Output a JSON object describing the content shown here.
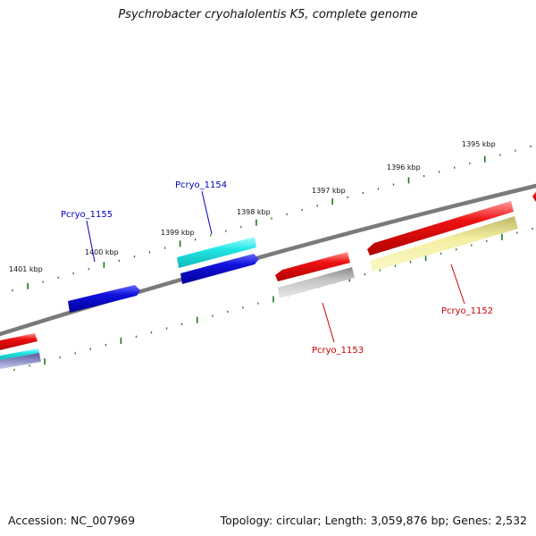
{
  "title": "Psychrobacter cryohalolentis K5, complete genome",
  "footer": {
    "accession": "Accession: NC_007969",
    "summary": "Topology: circular; Length: 3,059,876 bp; Genes: 2,532"
  },
  "colors": {
    "backbone": "#7a7a7a",
    "tick": "#1a7a1a",
    "blue_label": "#0000bb",
    "red_label": "#cc0000",
    "red": "#ee1111",
    "blue": "#1111dd",
    "cyan": "#22e5e5",
    "gray": "#aaaaaa",
    "khaki": "#eeea99"
  },
  "kbp_labels": [
    "1395 kbp",
    "1396 kbp",
    "1397 kbp",
    "1398 kbp",
    "1399 kbp",
    "1400 kbp",
    "1401 kbp"
  ],
  "gene_labels": [
    "Pcryo_1154",
    "Pcryo_1155",
    "Pcryo_1153",
    "Pcryo_1152"
  ]
}
